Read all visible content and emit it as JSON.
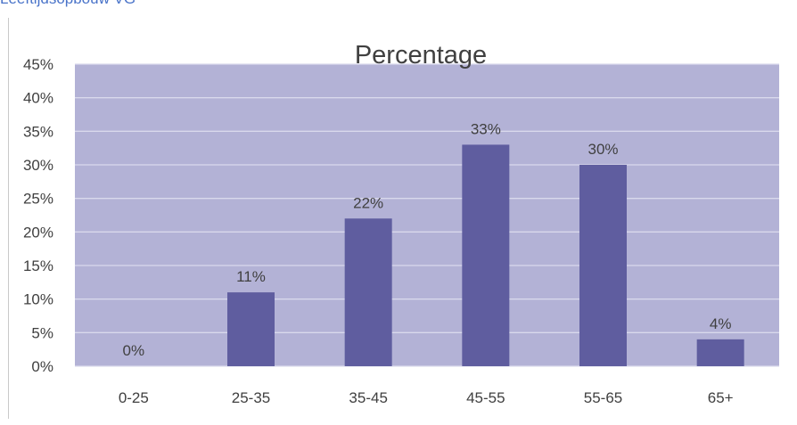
{
  "header": {
    "text": "Leeftijdsopbouw VG"
  },
  "colors": {
    "plot_background": "#b3b2d6",
    "bar": "#5f5d9f",
    "gridline": "#d9d9ec",
    "text": "#404040",
    "header_text": "#4a74c9"
  },
  "chart_data": {
    "type": "bar",
    "title": "Percentage",
    "categories": [
      "0-25",
      "25-35",
      "35-45",
      "45-55",
      "55-65",
      "65+"
    ],
    "values": [
      0,
      11,
      22,
      33,
      30,
      4
    ],
    "data_labels": [
      "0%",
      "11%",
      "22%",
      "33%",
      "30%",
      "4%"
    ],
    "yticks": [
      "0%",
      "5%",
      "10%",
      "15%",
      "20%",
      "25%",
      "30%",
      "35%",
      "40%",
      "45%"
    ],
    "ylim": [
      0,
      45
    ],
    "grid": true,
    "legend": "none"
  }
}
